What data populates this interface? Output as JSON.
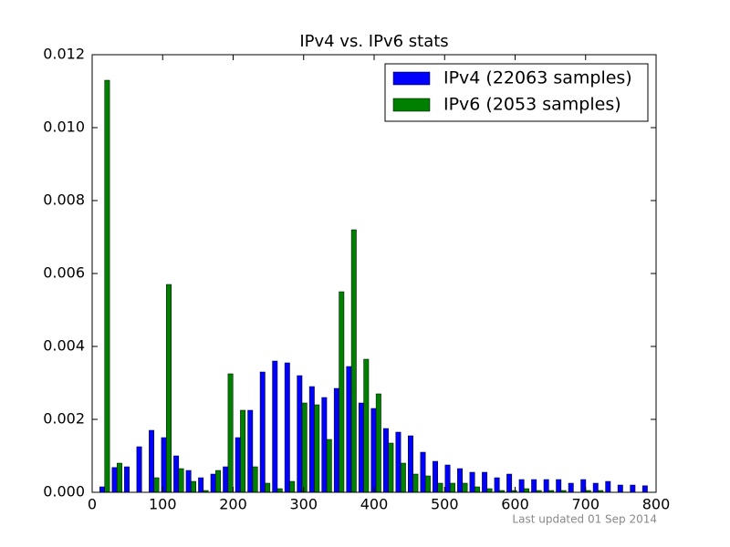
{
  "chart_data": {
    "type": "histogram",
    "title": "IPv4 vs. IPv6 stats",
    "annotation": "Last updated 01 Sep 2014",
    "bins": [
      9,
      26.5,
      44,
      61.5,
      79,
      96.5,
      114,
      131.5,
      149,
      166.5,
      184,
      201.5,
      219,
      236.5,
      254,
      271.5,
      289,
      306.5,
      324,
      341.5,
      359,
      376.5,
      394,
      411.5,
      429,
      446.5,
      464,
      481.5,
      499,
      516.5,
      534,
      551.5,
      569,
      586.5,
      604,
      621.5,
      639,
      656.5,
      674,
      691.5,
      709,
      726.5,
      744,
      761.5,
      779,
      796.5
    ],
    "series": [
      {
        "name": "IPv4 (22063 samples)",
        "color": "#0000ff",
        "values": [
          0.00015,
          0.00068,
          0.0007,
          0.00125,
          0.0017,
          0.0015,
          0.001,
          0.0006,
          0.0004,
          0.0005,
          0.0007,
          0.0015,
          0.00225,
          0.0033,
          0.0036,
          0.00355,
          0.0032,
          0.0029,
          0.0026,
          0.00285,
          0.00345,
          0.00245,
          0.0023,
          0.00175,
          0.00165,
          0.00155,
          0.0011,
          0.00085,
          0.00075,
          0.00065,
          0.00055,
          0.00055,
          0.0004,
          0.0005,
          0.00035,
          0.00035,
          0.00035,
          0.00035,
          0.00025,
          0.00035,
          0.00025,
          0.0003,
          0.0002,
          0.0002,
          0.00018
        ]
      },
      {
        "name": "IPv6 (2053 samples)",
        "color": "#008000",
        "values": [
          0.0113,
          0.0008,
          0,
          0,
          0.0004,
          0.0057,
          0.00065,
          0.0003,
          5e-05,
          0.0006,
          0.00325,
          0.00225,
          0.0007,
          0.00025,
          0.0001,
          0.0003,
          0.00245,
          0.0024,
          0.00145,
          0.0055,
          0.0072,
          0.00365,
          0.0027,
          0.00135,
          0.0008,
          0.0005,
          0.00045,
          0.00025,
          0.00025,
          0.00025,
          0.00015,
          0.0001,
          5e-05,
          5e-05,
          0.0001,
          5e-05,
          5e-05,
          5e-05,
          0,
          5e-05,
          5e-05,
          0,
          0,
          0,
          0
        ]
      }
    ],
    "xlim": [
      0,
      800
    ],
    "xticks": [
      0,
      100,
      200,
      300,
      400,
      500,
      600,
      700,
      800
    ],
    "ylim": [
      0,
      0.012
    ],
    "yticks": [
      {
        "value": 0,
        "label": "0.000"
      },
      {
        "value": 0.002,
        "label": "0.002"
      },
      {
        "value": 0.004,
        "label": "0.004"
      },
      {
        "value": 0.006,
        "label": "0.006"
      },
      {
        "value": 0.008,
        "label": "0.008"
      },
      {
        "value": 0.01,
        "label": "0.010"
      },
      {
        "value": 0.012,
        "label": "0.012"
      }
    ],
    "legend": "upper right"
  }
}
